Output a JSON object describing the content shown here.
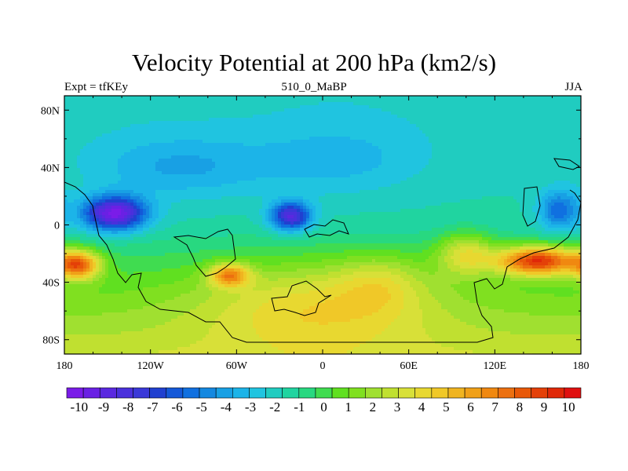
{
  "chart_data": {
    "type": "heatmap",
    "title": "Velocity Potential at 200 hPa (km2/s)",
    "subtitle_left": "Expt = tfKEy",
    "subtitle_center": "510_0_MaBP",
    "subtitle_right": "JJA",
    "x_range": [
      -180,
      180
    ],
    "y_range": [
      -90,
      90
    ],
    "x_ticks": [
      -180,
      -120,
      -60,
      0,
      60,
      120,
      180
    ],
    "x_tick_labels": [
      "180",
      "120W",
      "60W",
      "0",
      "60E",
      "120E",
      "180"
    ],
    "y_ticks": [
      80,
      40,
      0,
      -40,
      -80
    ],
    "y_tick_labels": [
      "80N",
      "40N",
      "0",
      "40S",
      "80S"
    ],
    "colorbar": {
      "min": -10.5,
      "max": 10.5,
      "labels": [
        "-10",
        "-9",
        "-8",
        "-7",
        "-6",
        "-5",
        "-4",
        "-3",
        "-2",
        "-1",
        "0",
        "1",
        "2",
        "3",
        "4",
        "5",
        "6",
        "7",
        "8",
        "9",
        "10"
      ],
      "colors": [
        "#7a1ce8",
        "#6a20e4",
        "#5a28e0",
        "#4a30dc",
        "#3a38d8",
        "#2040d0",
        "#1458d8",
        "#1070e0",
        "#1488e0",
        "#18a0e4",
        "#1cb4e8",
        "#20c4e0",
        "#20ccc0",
        "#20d4a0",
        "#28d880",
        "#40dc50",
        "#60e020",
        "#80e020",
        "#a0e030",
        "#c0e030",
        "#d8e038",
        "#e8d830",
        "#f0c828",
        "#f0b420",
        "#f0a018",
        "#f08810",
        "#ec7010",
        "#e85808",
        "#e44008",
        "#e02808",
        "#e01010"
      ]
    },
    "fields": {
      "background": -1.5,
      "centers": [
        {
          "lon": -145,
          "lat": 8,
          "val": -8.5,
          "slon": 22,
          "slat": 12
        },
        {
          "lon": -22,
          "lat": 6,
          "val": -7.0,
          "slon": 14,
          "slat": 10
        },
        {
          "lon": 165,
          "lat": 10,
          "val": -4.0,
          "slon": 14,
          "slat": 14
        },
        {
          "lon": -100,
          "lat": 40,
          "val": -2.0,
          "slon": 60,
          "slat": 22
        },
        {
          "lon": 10,
          "lat": 45,
          "val": -1.5,
          "slon": 60,
          "slat": 25
        },
        {
          "lon": 150,
          "lat": -25,
          "val": 9.5,
          "slon": 28,
          "slat": 10
        },
        {
          "lon": 100,
          "lat": -20,
          "val": 4.0,
          "slon": 20,
          "slat": 15
        },
        {
          "lon": -170,
          "lat": -28,
          "val": 7.5,
          "slon": 15,
          "slat": 10
        },
        {
          "lon": -65,
          "lat": -35,
          "val": 6.0,
          "slon": 14,
          "slat": 8
        },
        {
          "lon": -5,
          "lat": -55,
          "val": 3.0,
          "slon": 80,
          "slat": 30
        },
        {
          "lon": 40,
          "lat": -40,
          "val": 2.0,
          "slon": 30,
          "slat": 20
        }
      ]
    }
  }
}
